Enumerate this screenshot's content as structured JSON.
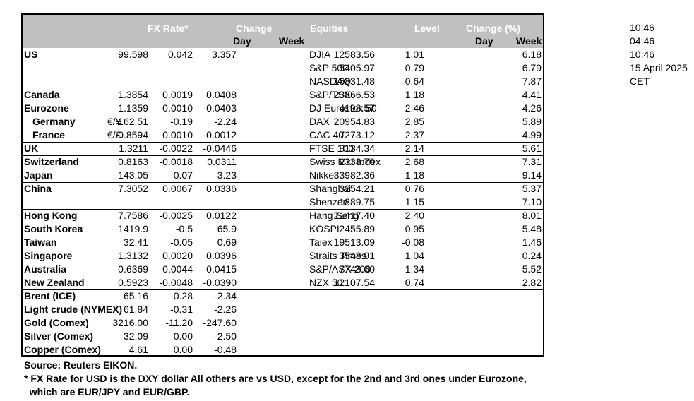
{
  "header": {
    "fx_rate": "FX Rate*",
    "change": "Change",
    "day": "Day",
    "week": "Week",
    "equities": "Equities",
    "level": "Level",
    "change_pct": "Change (%)",
    "day2": "Day",
    "week2": "Week"
  },
  "rows": [
    {
      "country": "US",
      "note": "",
      "fx": "99.598",
      "fxd": "0.042",
      "fxw": "3.357",
      "eq": "DJIA",
      "lvl": "12583.56",
      "d": "1.01",
      "w": "6.18"
    },
    {
      "country": "",
      "note": "",
      "fx": "",
      "fxd": "",
      "fxw": "",
      "eq": "S&P 500",
      "lvl": "5405.97",
      "d": "0.79",
      "w": "6.79"
    },
    {
      "country": "",
      "note": "",
      "fx": "",
      "fxd": "",
      "fxw": "",
      "eq": "NASDAQ",
      "lvl": "16831.48",
      "d": "0.64",
      "w": "7.87"
    },
    {
      "country": "Canada",
      "note": "",
      "fx": "1.3854",
      "fxd": "0.0019",
      "fxw": "0.0408",
      "eq": "S&P/TSX",
      "lvl": "23866.53",
      "d": "1.18",
      "w": "4.41"
    },
    {
      "country": "Eurozone",
      "note": "",
      "fx": "1.1359",
      "fxd": "-0.0010",
      "fxw": "-0.0403",
      "eq": "DJ Eurostox 50",
      "lvl": "4198.57",
      "d": "2.46",
      "w": "4.26"
    },
    {
      "country": "Germany",
      "note": "€/¥",
      "fx": "162.51",
      "fxd": "-0.19",
      "fxw": "-2.24",
      "eq": "DAX",
      "lvl": "20954.83",
      "d": "2.85",
      "w": "5.89"
    },
    {
      "country": "France",
      "note": "€/£",
      "fx": "0.8594",
      "fxd": "0.0010",
      "fxw": "-0.0012",
      "eq": "CAC 40",
      "lvl": "7273.12",
      "d": "2.37",
      "w": "4.99"
    },
    {
      "country": "UK",
      "note": "",
      "fx": "1.3211",
      "fxd": "-0.0022",
      "fxw": "-0.0446",
      "eq": "FTSE 100",
      "lvl": "8134.34",
      "d": "2.14",
      "w": "5.61"
    },
    {
      "country": "Switzerland",
      "note": "",
      "fx": "0.8163",
      "fxd": "-0.0018",
      "fxw": "0.0311",
      "eq": "Swiss Mkt Index",
      "lvl": "2338.70",
      "d": "2.68",
      "w": "7.31"
    },
    {
      "country": "Japan",
      "note": "",
      "fx": "143.05",
      "fxd": "-0.07",
      "fxw": "3.23",
      "eq": "Nikkei",
      "lvl": "33982.36",
      "d": "1.18",
      "w": "9.14"
    },
    {
      "country": "China",
      "note": "",
      "fx": "7.3052",
      "fxd": "0.0067",
      "fxw": "0.0336",
      "eq": "Shanghai",
      "lvl": "3254.21",
      "d": "0.76",
      "w": "5.37"
    },
    {
      "country": "",
      "note": "",
      "fx": "",
      "fxd": "",
      "fxw": "",
      "eq": "Shenzen",
      "lvl": "1889.75",
      "d": "1.15",
      "w": "7.10"
    },
    {
      "country": "Hong Kong",
      "note": "",
      "fx": "7.7586",
      "fxd": "-0.0025",
      "fxw": "0.0122",
      "eq": "Hang Seng",
      "lvl": "21417.40",
      "d": "2.40",
      "w": "8.01"
    },
    {
      "country": "South Korea",
      "note": "",
      "fx": "1419.9",
      "fxd": "-0.5",
      "fxw": "65.9",
      "eq": "KOSPI",
      "lvl": "2455.89",
      "d": "0.95",
      "w": "5.48"
    },
    {
      "country": "Taiwan",
      "note": "",
      "fx": "32.41",
      "fxd": "-0.05",
      "fxw": "0.69",
      "eq": "Taiex",
      "lvl": "19513.09",
      "d": "-0.08",
      "w": "1.46"
    },
    {
      "country": "Singapore",
      "note": "",
      "fx": "1.3132",
      "fxd": "0.0020",
      "fxw": "0.0396",
      "eq": "Straits Times",
      "lvl": "3548.91",
      "d": "1.04",
      "w": "0.24"
    },
    {
      "country": "Australia",
      "note": "",
      "fx": "0.6369",
      "fxd": "-0.0044",
      "fxw": "-0.0415",
      "eq": "S&P/ASX  200",
      "lvl": "7748.60",
      "d": "1.34",
      "w": "5.52"
    },
    {
      "country": "New Zealand",
      "note": "",
      "fx": "0.5923",
      "fxd": "-0.0048",
      "fxw": "-0.0390",
      "eq": "NZX 50",
      "lvl": "12107.54",
      "d": "0.74",
      "w": "2.82"
    },
    {
      "country": "Brent (ICE)",
      "note": "",
      "fx": "65.16",
      "fxd": "-0.28",
      "fxw": "-2.34",
      "eq": "",
      "lvl": "",
      "d": "",
      "w": ""
    },
    {
      "country": "Light crude (NYMEX)",
      "note": "",
      "fx": "61.84",
      "fxd": "-0.31",
      "fxw": "-2.26",
      "eq": "",
      "lvl": "",
      "d": "",
      "w": ""
    },
    {
      "country": "Gold (Comex)",
      "note": "",
      "fx": "3216.00",
      "fxd": "-11.20",
      "fxw": "-247.60",
      "eq": "",
      "lvl": "",
      "d": "",
      "w": ""
    },
    {
      "country": "Silver (Comex)",
      "note": "",
      "fx": "32.09",
      "fxd": "0.00",
      "fxw": "-2.50",
      "eq": "",
      "lvl": "",
      "d": "",
      "w": ""
    },
    {
      "country": "Copper (Comex)",
      "note": "",
      "fx": "4.61",
      "fxd": "0.00",
      "fxw": "-0.48",
      "eq": "",
      "lvl": "",
      "d": "",
      "w": ""
    }
  ],
  "times": [
    "10:46",
    "04:46",
    "10:46",
    "15 April 2025",
    "CET"
  ],
  "notes": [
    "Source:  Reuters EIKON.",
    "* FX Rate for USD is the DXY dollar  All others are vs USD, except for the 2nd and 3rd ones under Eurozone,",
    "  which are EUR/JPY and EUR/GBP."
  ]
}
